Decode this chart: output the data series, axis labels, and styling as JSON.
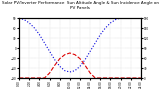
{
  "title": "Solar PV/Inverter Performance  Sun Altitude Angle & Sun Incidence Angle on PV Panels",
  "title_fontsize": 3.0,
  "background_color": "#ffffff",
  "grid_color": "#bbbbbb",
  "x_values": [
    0,
    1,
    2,
    3,
    4,
    5,
    6,
    7,
    8,
    9,
    10,
    11,
    12,
    13,
    14,
    15,
    16,
    17,
    18,
    19,
    20,
    21,
    22,
    23,
    24
  ],
  "sun_altitude": [
    90,
    85,
    75,
    60,
    40,
    15,
    -10,
    -35,
    -55,
    -68,
    -72,
    -68,
    -55,
    -35,
    -10,
    15,
    40,
    60,
    75,
    85,
    90,
    90,
    90,
    90,
    90
  ],
  "sun_incidence": [
    -90,
    -90,
    -90,
    -90,
    -90,
    -90,
    -75,
    -52,
    -32,
    -20,
    -15,
    -20,
    -32,
    -52,
    -75,
    -90,
    -90,
    -90,
    -90,
    -90,
    -90,
    -90,
    -90,
    -90,
    -90
  ],
  "altitude_color": "#0000dd",
  "incidence_color": "#dd0000",
  "altitude_linestyle": "dotted",
  "incidence_linestyle": "dashed",
  "xlim": [
    0,
    24
  ],
  "ylim_left": [
    -90,
    90
  ],
  "ylim_right": [
    0,
    180
  ],
  "xtick_positions": [
    0,
    2,
    4,
    6,
    8,
    10,
    12,
    14,
    16,
    18,
    20,
    22,
    24
  ],
  "xtick_labels": [
    "0:00",
    "2:00",
    "4:00",
    "6:00",
    "8:00",
    "10:00",
    "12:00",
    "14:00",
    "16:00",
    "18:00",
    "20:00",
    "22:00",
    "24:00"
  ],
  "ytick_left": [
    -90,
    -60,
    -30,
    0,
    30,
    60,
    90
  ],
  "ytick_right_vals": [
    0,
    30,
    60,
    90,
    120,
    150,
    180
  ],
  "ytick_right_labels": [
    "0",
    "30",
    "60",
    "90",
    "120",
    "150",
    "180"
  ],
  "linewidth": 0.8,
  "dot_size": 1.0
}
